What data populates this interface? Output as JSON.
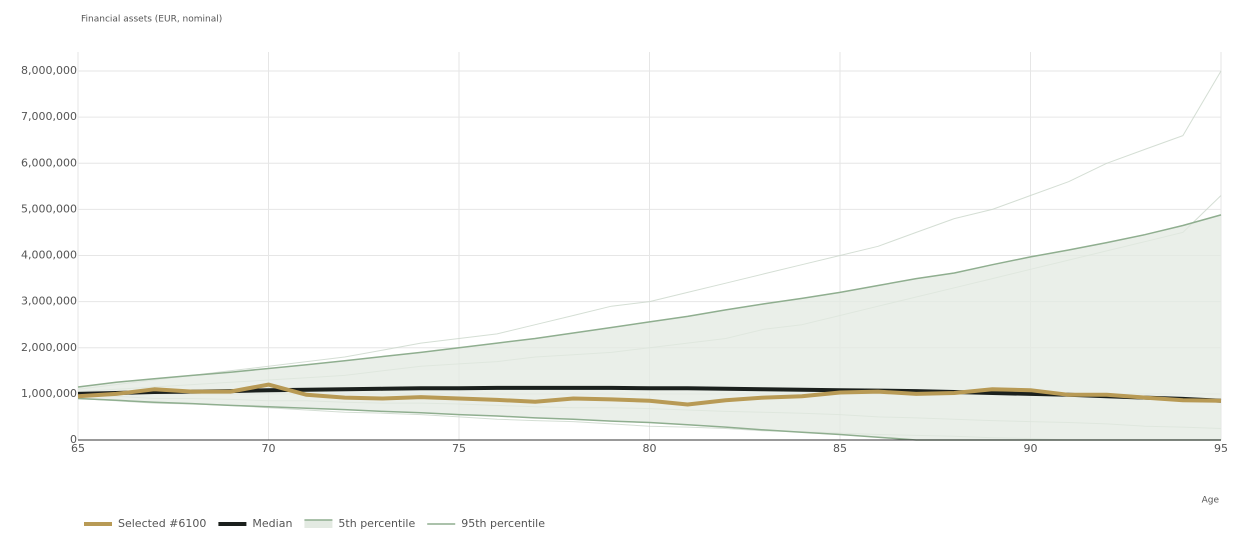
{
  "chart_data": {
    "type": "line",
    "title": "Financial assets (EUR, nominal)",
    "x_label": "Age",
    "x": [
      65,
      66,
      67,
      68,
      69,
      70,
      71,
      72,
      73,
      74,
      75,
      76,
      77,
      78,
      79,
      80,
      81,
      82,
      83,
      84,
      85,
      86,
      87,
      88,
      89,
      90,
      91,
      92,
      93,
      94,
      95
    ],
    "xlim": [
      65,
      95
    ],
    "xticks": [
      65,
      70,
      75,
      80,
      85,
      90,
      95
    ],
    "ylim": [
      0,
      8000000
    ],
    "yticks": [
      0,
      {
        "value": 1000000,
        "label": "1,000,000"
      },
      {
        "value": 2000000,
        "label": "2,000,000"
      },
      {
        "value": 3000000,
        "label": "3,000,000"
      },
      {
        "value": 4000000,
        "label": "4,000,000"
      },
      {
        "value": 5000000,
        "label": "5,000,000"
      },
      {
        "value": 6000000,
        "label": "6,000,000"
      },
      {
        "value": 7000000,
        "label": "7,000,000"
      },
      {
        "value": 8000000,
        "label": "8,000,000"
      }
    ],
    "grid": true,
    "legend": "bottom-left",
    "paths_color": "#c9d6c9",
    "paths": [
      [
        1100000,
        1200000,
        1300000,
        1400000,
        1500000,
        1600000,
        1700000,
        1800000,
        1950000,
        2100000,
        2200000,
        2300000,
        2500000,
        2700000,
        2900000,
        3000000,
        3200000,
        3400000,
        3600000,
        3800000,
        4000000,
        4200000,
        4500000,
        4800000,
        5000000,
        5300000,
        5600000,
        6000000,
        6300000,
        6600000,
        8000000
      ],
      [
        950000,
        950000,
        900000,
        900000,
        880000,
        850000,
        850000,
        820000,
        800000,
        800000,
        780000,
        750000,
        720000,
        700000,
        700000,
        680000,
        650000,
        620000,
        600000,
        580000,
        550000,
        500000,
        480000,
        450000,
        420000,
        400000,
        380000,
        350000,
        300000,
        280000,
        250000
      ],
      [
        1050000,
        1100000,
        1150000,
        1200000,
        1250000,
        1300000,
        1350000,
        1400000,
        1500000,
        1600000,
        1650000,
        1700000,
        1800000,
        1850000,
        1900000,
        2000000,
        2100000,
        2200000,
        2400000,
        2500000,
        2700000,
        2900000,
        3100000,
        3300000,
        3500000,
        3700000,
        3900000,
        4100000,
        4300000,
        4500000,
        5300000
      ],
      [
        900000,
        850000,
        800000,
        780000,
        750000,
        700000,
        650000,
        600000,
        580000,
        550000,
        500000,
        450000,
        420000,
        400000,
        350000,
        300000,
        280000,
        250000,
        200000,
        180000,
        150000,
        120000,
        100000,
        80000,
        50000,
        30000,
        0,
        0,
        0,
        0,
        0
      ]
    ],
    "series": [
      {
        "name": "Selected #6100",
        "color": "#b89a55",
        "width": 4,
        "values": [
          950000,
          1000000,
          1100000,
          1050000,
          1050000,
          1200000,
          980000,
          920000,
          900000,
          930000,
          900000,
          870000,
          830000,
          900000,
          880000,
          850000,
          770000,
          860000,
          920000,
          950000,
          1030000,
          1050000,
          1000000,
          1020000,
          1100000,
          1080000,
          980000,
          980000,
          920000,
          860000,
          850000
        ]
      },
      {
        "name": "Median",
        "color": "#1b201d",
        "width": 4,
        "values": [
          1000000,
          1020000,
          1040000,
          1050000,
          1060000,
          1080000,
          1090000,
          1100000,
          1110000,
          1120000,
          1120000,
          1130000,
          1130000,
          1130000,
          1130000,
          1120000,
          1120000,
          1110000,
          1100000,
          1090000,
          1080000,
          1070000,
          1060000,
          1040000,
          1020000,
          1000000,
          980000,
          950000,
          920000,
          890000,
          850000
        ]
      },
      {
        "name": "5th percentile",
        "color": "#8fae8f",
        "fill": "#e3eae2",
        "width": 1.5,
        "values": [
          900000,
          860000,
          820000,
          790000,
          750000,
          720000,
          690000,
          660000,
          620000,
          590000,
          550000,
          520000,
          480000,
          450000,
          410000,
          380000,
          330000,
          280000,
          220000,
          170000,
          120000,
          60000,
          0,
          0,
          0,
          0,
          0,
          0,
          0,
          0,
          0
        ]
      },
      {
        "name": "95th percentile",
        "color": "#8fae8f",
        "width": 1.5,
        "values": [
          1150000,
          1250000,
          1330000,
          1400000,
          1470000,
          1550000,
          1630000,
          1720000,
          1810000,
          1900000,
          2000000,
          2100000,
          2200000,
          2320000,
          2440000,
          2560000,
          2680000,
          2820000,
          2950000,
          3070000,
          3200000,
          3350000,
          3500000,
          3620000,
          3800000,
          3970000,
          4120000,
          4280000,
          4450000,
          4650000,
          4880000
        ]
      }
    ]
  }
}
